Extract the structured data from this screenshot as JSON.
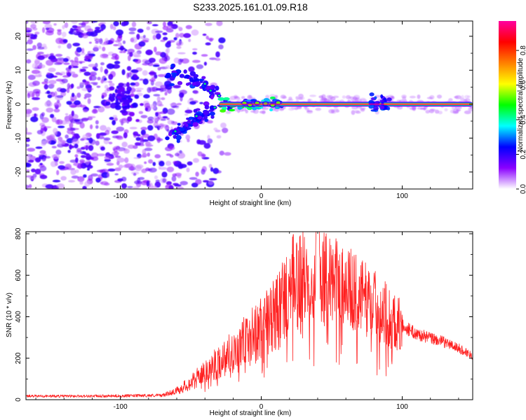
{
  "figure_title": "S233.2025.161.01.09.R18",
  "chart_data": [
    {
      "type": "heatmap",
      "title": "S233.2025.161.01.09.R18",
      "xlabel": "Height of straight line (km)",
      "ylabel": "Frequency (Hz)",
      "xlim": [
        -167,
        150
      ],
      "ylim": [
        -25,
        24.5
      ],
      "xticks": [
        -100,
        0,
        100
      ],
      "yticks": [
        -20,
        -10,
        0,
        10,
        20
      ],
      "colorbar": {
        "label": "Normalized spectral amplitude",
        "range": [
          0,
          0.97
        ],
        "ticks": [
          "0.0",
          "0.2",
          "0.4",
          "0.6",
          "0.8"
        ],
        "tick_values": [
          0.0,
          0.2,
          0.4,
          0.6,
          0.8
        ],
        "colormap": [
          "#ffffff",
          "#8a00ff",
          "#0000ff",
          "#00ffff",
          "#00ff00",
          "#ffff00",
          "#ff8000",
          "#ff0000",
          "#ff00a0"
        ]
      },
      "features": {
        "noise_region_x": [
          -167,
          -65
        ],
        "carrier_frequency_hz": 0,
        "carrier_x_range": [
          -30,
          150
        ],
        "branch_upper": [
          [
            -67,
            10
          ],
          [
            -50,
            7
          ],
          [
            -40,
            5.5
          ],
          [
            -32,
            3
          ]
        ],
        "branch_lower": [
          [
            -65,
            -9
          ],
          [
            -55,
            -7
          ],
          [
            -45,
            -4
          ],
          [
            -35,
            -2
          ]
        ]
      }
    },
    {
      "type": "line",
      "xlabel": "Height of straight line (km)",
      "ylabel": "SNR (10 * v/v)",
      "xlim": [
        -167,
        150
      ],
      "ylim": [
        0,
        810
      ],
      "xticks": [
        -100,
        0,
        100
      ],
      "yticks": [
        0,
        200,
        400,
        600,
        800
      ],
      "series": [
        {
          "name": "SNR",
          "color": "#ff2020",
          "envelope_x": [
            -167,
            -110,
            -70,
            -60,
            -50,
            -40,
            -30,
            -20,
            -10,
            0,
            10,
            20,
            30,
            40,
            50,
            60,
            70,
            80,
            90,
            100,
            110,
            120,
            130,
            140,
            150
          ],
          "envelope_y": [
            18,
            18,
            22,
            45,
            85,
            140,
            190,
            250,
            300,
            360,
            420,
            560,
            600,
            620,
            600,
            570,
            520,
            480,
            420,
            360,
            320,
            300,
            280,
            250,
            215
          ],
          "peak_value": 810,
          "peak_x": 40
        }
      ]
    }
  ]
}
